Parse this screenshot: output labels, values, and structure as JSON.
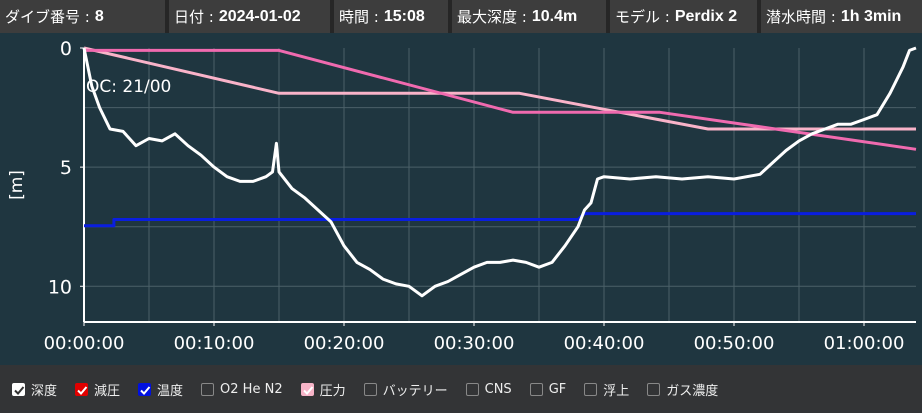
{
  "header": [
    {
      "label": "ダイブ番号 :",
      "value": "8"
    },
    {
      "label": "日付 :",
      "value": "2024-01-02"
    },
    {
      "label": "時間 :",
      "value": "15:08"
    },
    {
      "label": "最大深度 :",
      "value": "10.4m"
    },
    {
      "label": "モデル :",
      "value": "Perdix 2"
    },
    {
      "label": "潜水時間 :",
      "value": "1h 3min"
    }
  ],
  "chart_data": {
    "type": "line",
    "ylabel": "[m]",
    "annotation": "OC: 21/00",
    "xlim": [
      0,
      64
    ],
    "ylim": [
      0,
      11.5
    ],
    "y_inverted": true,
    "grid": true,
    "xticks": [
      {
        "value": 0,
        "label": "00:00:00"
      },
      {
        "value": 10,
        "label": "00:10:00"
      },
      {
        "value": 20,
        "label": "00:20:00"
      },
      {
        "value": 30,
        "label": "00:30:00"
      },
      {
        "value": 40,
        "label": "00:40:00"
      },
      {
        "value": 50,
        "label": "00:50:00"
      },
      {
        "value": 60,
        "label": "01:00:00"
      }
    ],
    "yticks": [
      0,
      5,
      10
    ],
    "xgrid": [
      5,
      10,
      15,
      20,
      25,
      30,
      35,
      40,
      45,
      50,
      55,
      60
    ],
    "ygrid": [
      2.5,
      5,
      7.5,
      10
    ],
    "series": [
      {
        "color": "#f9b3c9",
        "x": [
          0,
          15,
          33.5,
          48,
          64
        ],
        "values": [
          0,
          1.9,
          1.9,
          3.4,
          3.4
        ]
      },
      {
        "color": "#f06aaf",
        "x": [
          0,
          15,
          33,
          44.3,
          64
        ],
        "values": [
          0.1,
          0.1,
          2.7,
          2.7,
          4.25
        ]
      },
      {
        "color": "#0a1ee0",
        "x": [
          0,
          2.3,
          2.3,
          38,
          38.5,
          64
        ],
        "values": [
          7.46,
          7.46,
          7.2,
          7.2,
          6.95,
          6.95
        ]
      },
      {
        "color": "#ffffff",
        "x": [
          0,
          0.6,
          1.2,
          2,
          3,
          4,
          5,
          6,
          7,
          8,
          9,
          10,
          11,
          12,
          13,
          14,
          14.5,
          14.8,
          15,
          16,
          17,
          18,
          19,
          20,
          21,
          22,
          23,
          24,
          25,
          26,
          27,
          28,
          29,
          30,
          31,
          32,
          33,
          34,
          35,
          36,
          37,
          38,
          38.5,
          39,
          39.5,
          40,
          42,
          44,
          46,
          48,
          50,
          52,
          53,
          54,
          55,
          56,
          57,
          58,
          59,
          60,
          61,
          62,
          63,
          63.5,
          64
        ],
        "values": [
          0,
          1.6,
          2.5,
          3.4,
          3.5,
          4.1,
          3.8,
          3.9,
          3.6,
          4.1,
          4.5,
          5.0,
          5.4,
          5.6,
          5.6,
          5.4,
          5.2,
          4.0,
          5.2,
          5.9,
          6.3,
          6.8,
          7.3,
          8.3,
          9.0,
          9.3,
          9.7,
          9.9,
          10.0,
          10.4,
          10.0,
          9.8,
          9.5,
          9.2,
          9.0,
          9.0,
          8.9,
          9.0,
          9.2,
          9.0,
          8.3,
          7.5,
          6.8,
          6.5,
          5.5,
          5.4,
          5.5,
          5.4,
          5.5,
          5.4,
          5.5,
          5.3,
          4.8,
          4.3,
          3.9,
          3.6,
          3.4,
          3.2,
          3.2,
          3.0,
          2.8,
          1.9,
          0.8,
          0.1,
          0
        ]
      }
    ]
  },
  "controls": [
    {
      "label": "深度",
      "checked": true,
      "color": "#ffffff"
    },
    {
      "label": "減圧",
      "checked": true,
      "color": "#e00000"
    },
    {
      "label": "温度",
      "checked": true,
      "color": "#0010e0"
    },
    {
      "label": "O2 He N2",
      "checked": false
    },
    {
      "label": "圧力",
      "checked": true,
      "color": "#f7b4c8"
    },
    {
      "label": "バッテリー",
      "checked": false
    },
    {
      "label": "CNS",
      "checked": false
    },
    {
      "label": "GF",
      "checked": false
    },
    {
      "label": "浮上",
      "checked": false
    },
    {
      "label": "ガス濃度",
      "checked": false
    }
  ]
}
